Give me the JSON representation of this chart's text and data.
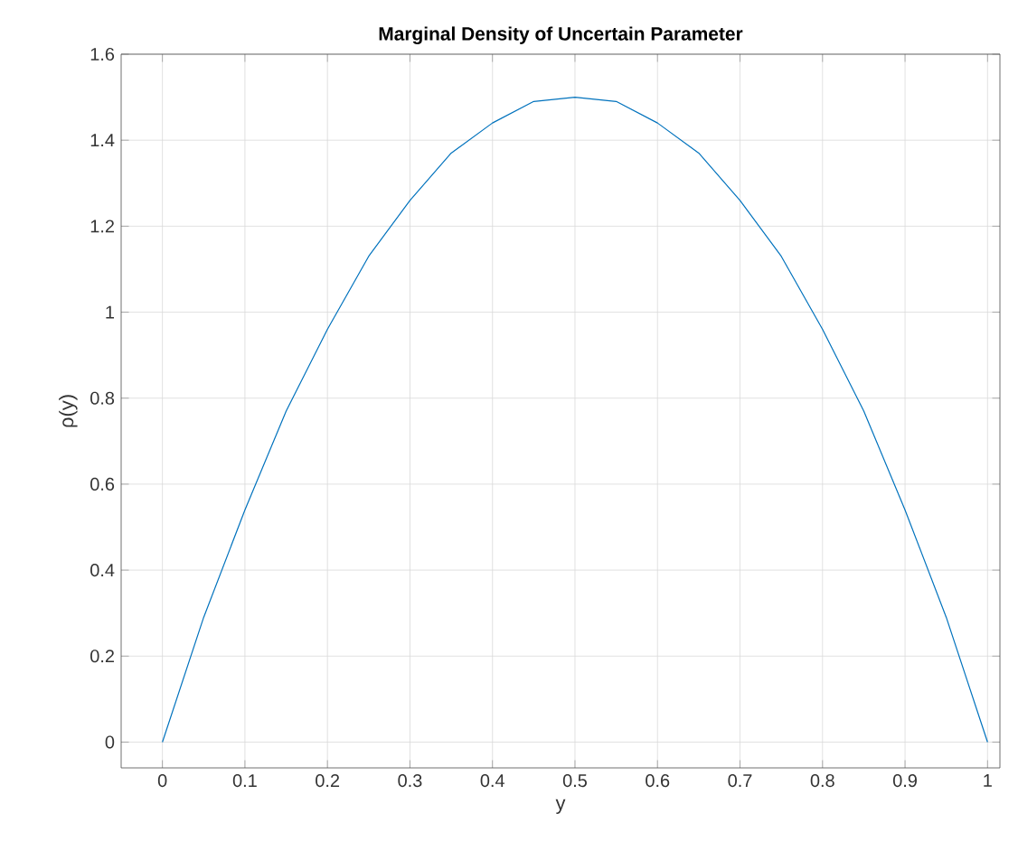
{
  "chart_data": {
    "type": "line",
    "title": "Marginal Density of Uncertain Parameter",
    "xlabel": "y",
    "ylabel": "ρ(y)",
    "x": [
      0,
      0.05,
      0.1,
      0.15,
      0.2,
      0.25,
      0.3,
      0.35,
      0.4,
      0.45,
      0.5,
      0.55,
      0.6,
      0.65,
      0.7,
      0.75,
      0.8,
      0.85,
      0.9,
      0.95,
      1
    ],
    "series": [
      {
        "color": "#0072bd",
        "values": [
          0,
          0.29,
          0.54,
          0.77,
          0.96,
          1.13,
          1.26,
          1.37,
          1.44,
          1.49,
          1.5,
          1.49,
          1.44,
          1.37,
          1.26,
          1.13,
          0.96,
          0.77,
          0.54,
          0.29,
          0
        ]
      }
    ],
    "xlim": [
      -0.05,
      1.015
    ],
    "ylim": [
      -0.06,
      1.6
    ],
    "xticks": [
      0,
      0.1,
      0.2,
      0.3,
      0.4,
      0.5,
      0.6,
      0.7,
      0.8,
      0.9,
      1
    ],
    "yticks": [
      0,
      0.2,
      0.4,
      0.6,
      0.8,
      1,
      1.2,
      1.4,
      1.6
    ],
    "grid": true,
    "marker": "none",
    "line_style": "solid"
  }
}
